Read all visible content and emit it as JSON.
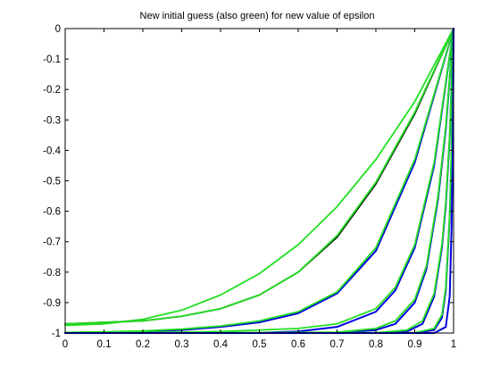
{
  "chart_data": {
    "type": "line",
    "title": "New initial guess (also green) for new value of epsilon",
    "xlabel": "",
    "ylabel": "",
    "xlim": [
      0,
      1
    ],
    "ylim": [
      -1,
      0
    ],
    "x_ticks": [
      0,
      0.1,
      0.2,
      0.3,
      0.4,
      0.5,
      0.6,
      0.7,
      0.8,
      0.9,
      1
    ],
    "x_tick_labels": [
      "0",
      "0.1",
      "0.2",
      "0.3",
      "0.4",
      "0.5",
      "0.6",
      "0.7",
      "0.8",
      "0.9",
      "1"
    ],
    "y_ticks": [
      0,
      -0.1,
      -0.2,
      -0.3,
      -0.4,
      -0.5,
      -0.6,
      -0.7,
      -0.8,
      -0.9,
      -1
    ],
    "y_tick_labels": [
      "0",
      "-0.1",
      "-0.2",
      "-0.3",
      "-0.4",
      "-0.5",
      "-0.6",
      "-0.7",
      "-0.8",
      "-0.9",
      "-1"
    ],
    "grid": false,
    "legend": "none",
    "colors": {
      "green": "#22e022",
      "blue": "#0000e0",
      "black": "#000000",
      "axes": "#000000",
      "background": "#ffffff"
    },
    "series": [
      {
        "color": "green",
        "x": [
          0,
          0.1,
          0.2,
          0.3,
          0.4,
          0.5,
          0.6,
          0.7,
          0.8,
          0.9,
          1
        ],
        "y": [
          -0.975,
          -0.97,
          -0.955,
          -0.925,
          -0.875,
          -0.805,
          -0.71,
          -0.585,
          -0.43,
          -0.24,
          0
        ]
      },
      {
        "color": "black",
        "x": [
          0,
          0.1,
          0.2,
          0.3,
          0.4,
          0.5,
          0.6,
          0.7,
          0.8,
          0.9,
          1
        ],
        "y": [
          -0.97,
          -0.965,
          -0.96,
          -0.945,
          -0.92,
          -0.875,
          -0.8,
          -0.685,
          -0.51,
          -0.28,
          0
        ]
      },
      {
        "color": "green",
        "x": [
          0,
          0.1,
          0.2,
          0.3,
          0.4,
          0.5,
          0.6,
          0.7,
          0.8,
          0.9,
          1
        ],
        "y": [
          -0.97,
          -0.965,
          -0.96,
          -0.945,
          -0.92,
          -0.875,
          -0.8,
          -0.68,
          -0.505,
          -0.275,
          0
        ]
      },
      {
        "color": "blue",
        "x": [
          0,
          0.1,
          0.2,
          0.3,
          0.4,
          0.5,
          0.6,
          0.7,
          0.8,
          0.9,
          1
        ],
        "y": [
          -1,
          -0.998,
          -0.995,
          -0.99,
          -0.98,
          -0.965,
          -0.935,
          -0.87,
          -0.73,
          -0.44,
          0
        ]
      },
      {
        "color": "green",
        "x": [
          0,
          0.1,
          0.2,
          0.3,
          0.4,
          0.5,
          0.6,
          0.7,
          0.8,
          0.9,
          1
        ],
        "y": [
          -0.998,
          -0.996,
          -0.993,
          -0.987,
          -0.977,
          -0.96,
          -0.93,
          -0.865,
          -0.72,
          -0.43,
          0
        ]
      },
      {
        "color": "blue",
        "x": [
          0,
          0.1,
          0.2,
          0.3,
          0.4,
          0.5,
          0.6,
          0.7,
          0.8,
          0.85,
          0.9,
          0.95,
          1
        ],
        "y": [
          -1,
          -1,
          -1,
          -1,
          -1,
          -0.999,
          -0.995,
          -0.98,
          -0.93,
          -0.86,
          -0.72,
          -0.45,
          0
        ]
      },
      {
        "color": "green",
        "x": [
          0,
          0.1,
          0.2,
          0.3,
          0.4,
          0.5,
          0.6,
          0.7,
          0.8,
          0.85,
          0.9,
          0.95,
          1
        ],
        "y": [
          -0.999,
          -0.999,
          -0.998,
          -0.997,
          -0.995,
          -0.99,
          -0.985,
          -0.97,
          -0.92,
          -0.85,
          -0.71,
          -0.44,
          0
        ]
      },
      {
        "color": "blue",
        "x": [
          0,
          0.5,
          0.7,
          0.8,
          0.85,
          0.9,
          0.93,
          0.96,
          0.98,
          1
        ],
        "y": [
          -1,
          -1,
          -0.999,
          -0.99,
          -0.97,
          -0.9,
          -0.79,
          -0.56,
          -0.33,
          0
        ]
      },
      {
        "color": "green",
        "x": [
          0,
          0.5,
          0.7,
          0.8,
          0.85,
          0.9,
          0.93,
          0.96,
          0.98,
          1
        ],
        "y": [
          -0.999,
          -0.999,
          -0.997,
          -0.985,
          -0.96,
          -0.89,
          -0.78,
          -0.55,
          -0.32,
          0
        ]
      },
      {
        "color": "blue",
        "x": [
          0,
          0.8,
          0.88,
          0.92,
          0.95,
          0.97,
          0.98,
          0.99,
          1
        ],
        "y": [
          -1,
          -1,
          -0.995,
          -0.97,
          -0.88,
          -0.72,
          -0.58,
          -0.36,
          0
        ]
      },
      {
        "color": "green",
        "x": [
          0,
          0.8,
          0.88,
          0.92,
          0.95,
          0.97,
          0.98,
          0.99,
          1
        ],
        "y": [
          -0.999,
          -0.999,
          -0.99,
          -0.96,
          -0.87,
          -0.71,
          -0.57,
          -0.35,
          0
        ]
      },
      {
        "color": "blue",
        "x": [
          0,
          0.9,
          0.95,
          0.97,
          0.98,
          0.99,
          0.995,
          1
        ],
        "y": [
          -1,
          -1,
          -0.99,
          -0.95,
          -0.86,
          -0.62,
          -0.4,
          0
        ]
      },
      {
        "color": "green",
        "x": [
          0,
          0.9,
          0.95,
          0.97,
          0.98,
          0.99,
          0.995,
          1
        ],
        "y": [
          -0.999,
          -0.999,
          -0.985,
          -0.94,
          -0.85,
          -0.61,
          -0.39,
          0
        ]
      },
      {
        "color": "blue",
        "x": [
          0,
          0.95,
          0.98,
          0.99,
          0.995,
          0.998,
          1
        ],
        "y": [
          -1,
          -1,
          -0.98,
          -0.88,
          -0.65,
          -0.4,
          0
        ]
      }
    ]
  }
}
